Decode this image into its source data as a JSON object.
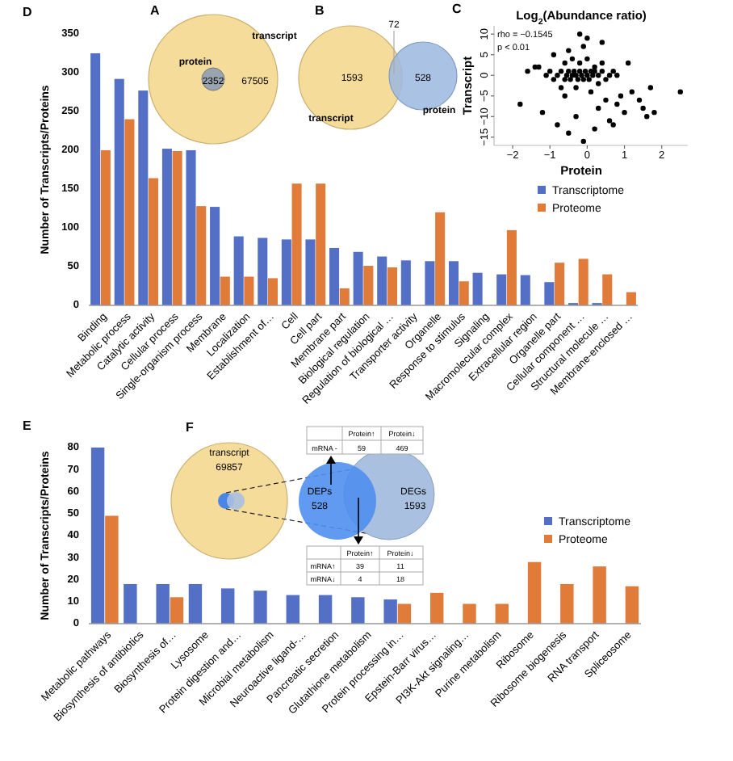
{
  "chart_data": [
    {
      "type": "bar",
      "annotations": [
        "D"
      ],
      "ylabel": "Number of Transcripts/Proteins",
      "legend": "right",
      "categories": [
        "Binding",
        "Metabolic process",
        "Catalytic activity",
        "Cellular process",
        "Single-organism process",
        "Membrane",
        "Localization",
        "Establishment of…",
        "Cell",
        "Cell part",
        "Membrane part",
        "Biological regulation",
        "Regulation of biological …",
        "Transporter activity",
        "Organelle",
        "Response to stimulus",
        "Signaling",
        "Macromolecular complex",
        "Extracellular region",
        "Organelle part",
        "Cellular component …",
        "Structural molecule …",
        "Membrane-enclosed …"
      ],
      "series": [
        {
          "name": "Transcriptome",
          "color": "#5470c6",
          "values": [
            325,
            292,
            277,
            202,
            200,
            127,
            89,
            87,
            85,
            85,
            74,
            69,
            63,
            58,
            57,
            57,
            42,
            40,
            39,
            30,
            3,
            3,
            null
          ]
        },
        {
          "name": "Proteome",
          "color": "#e07b39",
          "values": [
            200,
            240,
            164,
            199,
            128,
            37,
            37,
            35,
            157,
            157,
            22,
            51,
            49,
            null,
            120,
            31,
            null,
            97,
            null,
            55,
            60,
            40,
            17
          ]
        }
      ],
      "ylim": [
        0,
        350
      ],
      "yticks": [
        0,
        50,
        100,
        150,
        200,
        250,
        300,
        350
      ]
    },
    {
      "type": "other",
      "annotations": [
        "A",
        "transcript",
        "protein",
        "2352",
        "67505"
      ]
    },
    {
      "type": "other",
      "annotations": [
        "B",
        "72",
        "1593",
        "528",
        "transcript",
        "protein"
      ]
    },
    {
      "type": "scatter",
      "title": "Log$_{2}$(Abundance ratio)",
      "xlabel": "Protein",
      "ylabel": "Transcript",
      "annotations": [
        "C",
        "rho = −0.1545",
        "p < 0.01"
      ],
      "series": [
        {
          "color": "#000000",
          "x": [
            -1.6,
            -1.3,
            -1.1,
            -1.0,
            -0.9,
            -0.8,
            -0.7,
            -0.6,
            -0.55,
            -0.5,
            -0.45,
            -0.4,
            -0.35,
            -0.3,
            -0.25,
            -0.2,
            -0.15,
            -0.1,
            -0.05,
            0.0,
            0.05,
            0.1,
            0.15,
            0.2,
            0.3,
            0.4,
            0.5,
            0.6,
            0.7,
            0.8,
            -0.6,
            -0.4,
            -0.2,
            0.0,
            0.2,
            0.4,
            -0.7,
            -0.3,
            0.1,
            0.3,
            -0.9,
            -0.5,
            -0.1,
            0.5,
            0.9,
            1.2,
            1.5,
            1.8,
            2.5,
            -1.8,
            -1.2,
            -0.8,
            -0.3,
            0.3,
            0.6,
            1.0,
            1.4,
            1.7,
            -0.2,
            0.0,
            0.4,
            -0.5,
            -1.4,
            1.1,
            0.8,
            -0.6,
            0.2,
            -0.1,
            0.7,
            1.6
          ],
          "values": [
            1,
            2,
            0,
            1,
            -1,
            0,
            1,
            -1,
            0,
            1,
            -1,
            0,
            1,
            0,
            -1,
            1,
            0,
            -1,
            1,
            0,
            -1,
            1,
            0,
            1,
            0,
            1,
            -1,
            0,
            1,
            0,
            3,
            4,
            3,
            4,
            2,
            3,
            -3,
            -3,
            -4,
            -2,
            5,
            6,
            7,
            -6,
            -5,
            -4,
            -8,
            -9,
            -4,
            -7,
            -9,
            -12,
            -10,
            -8,
            -11,
            -9,
            -6,
            -3,
            10,
            9,
            8,
            -14,
            2,
            3,
            -7,
            -5,
            -13,
            -16,
            -12,
            -10
          ]
        }
      ],
      "xlim": [
        -2.5,
        2.7
      ],
      "xticks": [
        {
          "value": -2,
          "label": "−2"
        },
        {
          "value": -1,
          "label": "−1"
        },
        0,
        1,
        2
      ],
      "ylim": [
        -17,
        12
      ],
      "yticks": [
        {
          "value": -15,
          "label": "−15"
        },
        {
          "value": -10,
          "label": "−10"
        },
        {
          "value": -5,
          "label": "−5"
        },
        0,
        5,
        10
      ],
      "marker": "circle"
    },
    {
      "type": "bar",
      "annotations": [
        "E"
      ],
      "ylabel": "Number of Transcripts/Proteins",
      "legend": "right",
      "categories": [
        "Metabolic pathways",
        "Biosynthesis of antibiotics",
        "Biosynthesis of…",
        "Lysosome",
        "Protein digestion and…",
        "Microbial metabolism",
        "Neuroactive ligand-…",
        "Pancreatic secretion",
        "Glutathione metabolism",
        "Protein processing in…",
        "Epstein-Barr virus…",
        "PI3K-Akt signaling…",
        "Purine metabolism",
        "Ribosome",
        "Ribosome biogenesis",
        "RNA transport",
        "Spliceosome"
      ],
      "series": [
        {
          "name": "Transcriptome",
          "color": "#5470c6",
          "values": [
            80,
            18,
            18,
            18,
            16,
            15,
            13,
            13,
            12,
            11,
            null,
            null,
            null,
            null,
            null,
            null,
            null
          ]
        },
        {
          "name": "Proteome",
          "color": "#e07b39",
          "values": [
            49,
            null,
            12,
            null,
            null,
            null,
            null,
            null,
            null,
            9,
            14,
            9,
            9,
            28,
            18,
            26,
            17
          ]
        }
      ],
      "ylim": [
        0,
        80
      ],
      "yticks": [
        0,
        10,
        20,
        30,
        40,
        50,
        60,
        70,
        80
      ]
    },
    {
      "type": "other",
      "annotations": [
        "F",
        "transcript",
        "69857",
        "DEPs",
        "528",
        "DEGs",
        "1593",
        "Protein↑",
        "Protein↓",
        "mRNA -",
        "59",
        "469",
        "Protein↑",
        "Protein↓",
        "mRNA↑",
        "39",
        "11",
        "mRNA↓",
        "4",
        "18"
      ]
    }
  ]
}
